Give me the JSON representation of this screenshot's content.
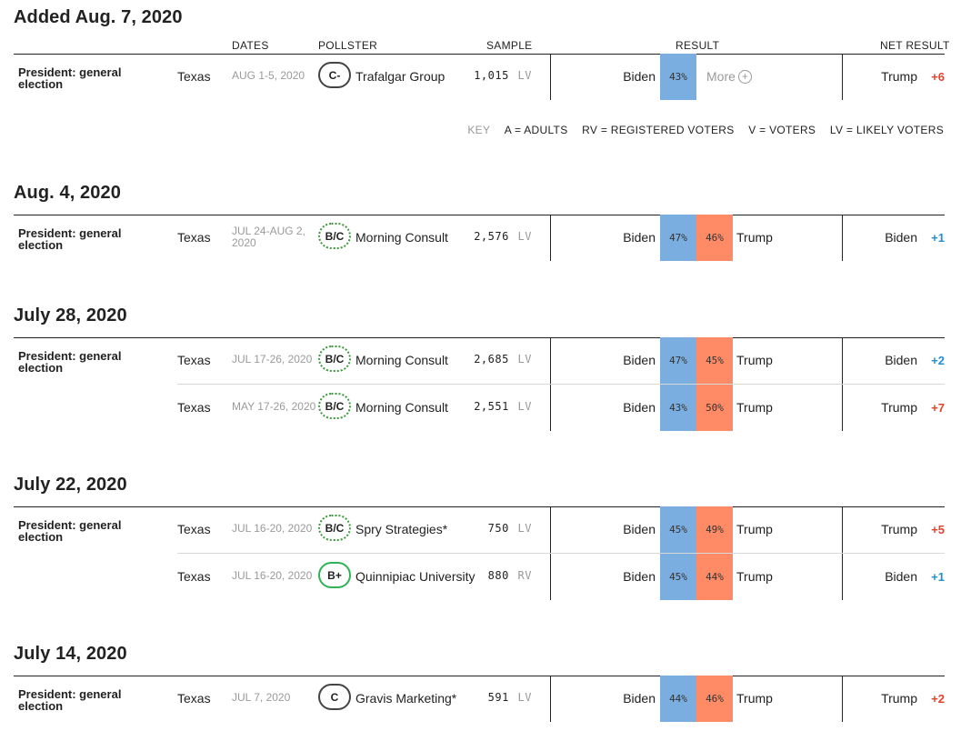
{
  "headers": {
    "dates": "DATES",
    "pollster": "POLLSTER",
    "sample": "SAMPLE",
    "result": "RESULT",
    "net_result": "NET RESULT"
  },
  "key": {
    "label": "KEY",
    "a": "A = ADULTS",
    "rv": "RV = REGISTERED VOTERS",
    "v": "V = VOTERS",
    "lv": "LV = LIKELY VOTERS"
  },
  "more_label": "More",
  "sections": [
    {
      "title": "Added Aug. 7, 2020",
      "office": "President: general election",
      "rows": [
        {
          "state": "Texas",
          "dates": "AUG 1-5, 2020",
          "grade": "C-",
          "pollster": "Trafalgar Group",
          "sample": "1,015",
          "pop": "LV",
          "cand1": "Biden",
          "pct1": "43%",
          "cand2": "",
          "pct2": "",
          "net_name": "Trump",
          "net_val": "+6"
        }
      ]
    },
    {
      "title": "Aug. 4, 2020",
      "office": "President: general election",
      "rows": [
        {
          "state": "Texas",
          "dates": "JUL 24-AUG 2, 2020",
          "grade": "B/C",
          "pollster": "Morning Consult",
          "sample": "2,576",
          "pop": "LV",
          "cand1": "Biden",
          "pct1": "47%",
          "cand2": "Trump",
          "pct2": "46%",
          "net_name": "Biden",
          "net_val": "+1"
        }
      ]
    },
    {
      "title": "July 28, 2020",
      "office": "President: general election",
      "rows": [
        {
          "state": "Texas",
          "dates": "JUL 17-26, 2020",
          "grade": "B/C",
          "pollster": "Morning Consult",
          "sample": "2,685",
          "pop": "LV",
          "cand1": "Biden",
          "pct1": "47%",
          "cand2": "Trump",
          "pct2": "45%",
          "net_name": "Biden",
          "net_val": "+2"
        },
        {
          "state": "Texas",
          "dates": "MAY 17-26, 2020",
          "grade": "B/C",
          "pollster": "Morning Consult",
          "sample": "2,551",
          "pop": "LV",
          "cand1": "Biden",
          "pct1": "43%",
          "cand2": "Trump",
          "pct2": "50%",
          "net_name": "Trump",
          "net_val": "+7"
        }
      ]
    },
    {
      "title": "July 22, 2020",
      "office": "President: general election",
      "rows": [
        {
          "state": "Texas",
          "dates": "JUL 16-20, 2020",
          "grade": "B/C",
          "pollster": "Spry Strategies*",
          "sample": "750",
          "pop": "LV",
          "cand1": "Biden",
          "pct1": "45%",
          "cand2": "Trump",
          "pct2": "49%",
          "net_name": "Trump",
          "net_val": "+5"
        },
        {
          "state": "Texas",
          "dates": "JUL 16-20, 2020",
          "grade": "B+",
          "pollster": "Quinnipiac University",
          "sample": "880",
          "pop": "RV",
          "cand1": "Biden",
          "pct1": "45%",
          "cand2": "Trump",
          "pct2": "44%",
          "net_name": "Biden",
          "net_val": "+1"
        }
      ]
    },
    {
      "title": "July 14, 2020",
      "office": "President: general election",
      "rows": [
        {
          "state": "Texas",
          "dates": "JUL 7, 2020",
          "grade": "C",
          "pollster": "Gravis Marketing*",
          "sample": "591",
          "pop": "LV",
          "cand1": "Biden",
          "pct1": "44%",
          "cand2": "Trump",
          "pct2": "46%",
          "net_name": "Trump",
          "net_val": "+2"
        }
      ]
    }
  ],
  "colors": {
    "biden_bar": "#7aaee0",
    "trump_bar": "#ff8b66",
    "trump_net": "#e8402b",
    "biden_net": "#1f8fd6",
    "grade_green": "#2cb456"
  }
}
